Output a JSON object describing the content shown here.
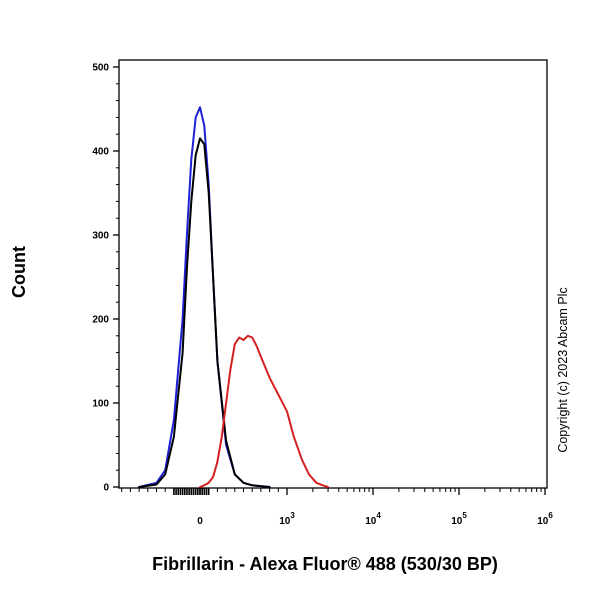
{
  "chart_data": {
    "type": "line",
    "xlabel": "Fibrillarin - Alexa Fluor® 488 (530/30 BP)",
    "ylabel": "Count",
    "ylim": [
      0,
      500
    ],
    "y_ticks": [
      "0",
      "100",
      "200",
      "300",
      "400",
      "500"
    ],
    "x_scale": "biexponential",
    "x_ticks": [
      {
        "base": "0",
        "exp": ""
      },
      {
        "base": "10",
        "exp": "3"
      },
      {
        "base": "10",
        "exp": "4"
      },
      {
        "base": "10",
        "exp": "5"
      },
      {
        "base": "10",
        "exp": "6"
      }
    ],
    "copyright": "Copyright (c) 2023 Abcam Plc",
    "series": [
      {
        "color": "#1f1fd6",
        "x": [
          -700,
          -500,
          -400,
          -300,
          -200,
          -150,
          -100,
          -50,
          0,
          50,
          100,
          150,
          200,
          300,
          400,
          500,
          600,
          800
        ],
        "y": [
          0,
          5,
          20,
          80,
          200,
          300,
          390,
          440,
          452,
          430,
          360,
          250,
          150,
          50,
          15,
          5,
          2,
          0
        ]
      },
      {
        "color": "#000000",
        "x": [
          -700,
          -500,
          -400,
          -300,
          -200,
          -150,
          -100,
          -50,
          0,
          50,
          100,
          150,
          200,
          300,
          400,
          500,
          600,
          800
        ],
        "y": [
          0,
          3,
          15,
          60,
          160,
          260,
          340,
          395,
          415,
          408,
          350,
          250,
          150,
          55,
          15,
          5,
          2,
          0
        ]
      },
      {
        "color": "#d42020",
        "x": [
          0,
          50,
          100,
          150,
          200,
          250,
          300,
          350,
          400,
          450,
          500,
          550,
          600,
          650,
          700,
          800,
          900,
          1000,
          1200,
          1500,
          1800,
          2200,
          2600,
          3000
        ],
        "y": [
          0,
          2,
          5,
          12,
          30,
          60,
          100,
          140,
          170,
          178,
          175,
          180,
          178,
          168,
          155,
          130,
          110,
          90,
          60,
          32,
          15,
          5,
          2,
          0
        ]
      }
    ]
  }
}
